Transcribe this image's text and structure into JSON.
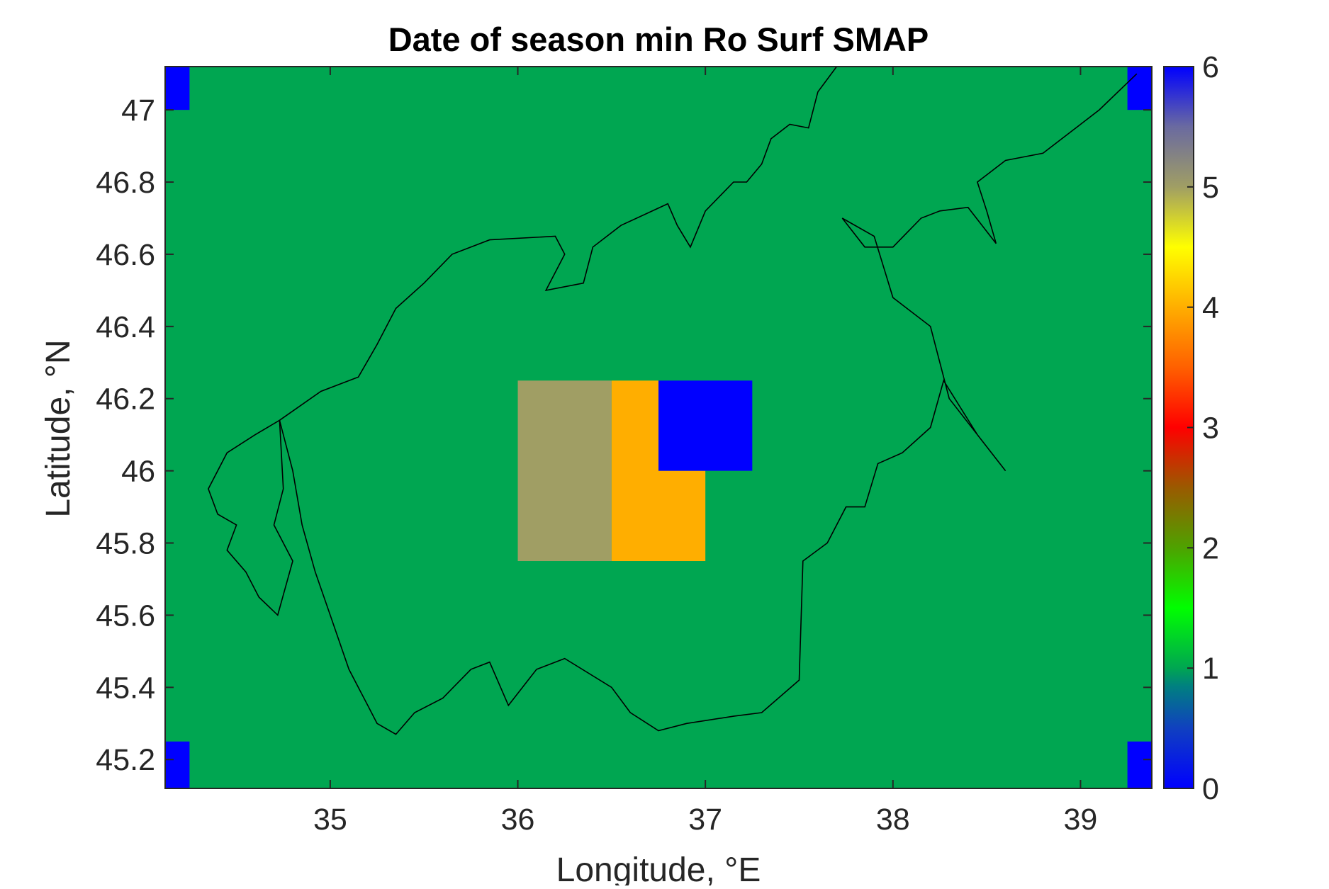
{
  "chart_data": {
    "type": "heatmap",
    "title": "Date of season min Ro Surf SMAP",
    "xlabel": "Longitude, °E",
    "ylabel": "Latitude, °N",
    "xlim": [
      34.12,
      39.38
    ],
    "ylim": [
      45.12,
      47.12
    ],
    "xticks": [
      {
        "value": 35,
        "label": "35"
      },
      {
        "value": 36,
        "label": "36"
      },
      {
        "value": 37,
        "label": "37"
      },
      {
        "value": 38,
        "label": "38"
      },
      {
        "value": 39,
        "label": "39"
      }
    ],
    "yticks": [
      {
        "value": 45.2,
        "label": "45.2"
      },
      {
        "value": 45.4,
        "label": "45.4"
      },
      {
        "value": 45.6,
        "label": "45.6"
      },
      {
        "value": 45.8,
        "label": "45.8"
      },
      {
        "value": 46.0,
        "label": "46"
      },
      {
        "value": 46.2,
        "label": "46.2"
      },
      {
        "value": 46.4,
        "label": "46.4"
      },
      {
        "value": 46.6,
        "label": "46.6"
      },
      {
        "value": 46.8,
        "label": "46.8"
      },
      {
        "value": 47.0,
        "label": "47"
      }
    ],
    "background_value": 1,
    "cells": [
      {
        "lon": [
          36.0,
          36.5
        ],
        "lat": [
          45.75,
          46.25
        ],
        "value": 5
      },
      {
        "lon": [
          36.5,
          36.75
        ],
        "lat": [
          45.75,
          46.25
        ],
        "value": 4
      },
      {
        "lon": [
          36.75,
          37.0
        ],
        "lat": [
          45.75,
          46.0
        ],
        "value": 4
      },
      {
        "lon": [
          36.75,
          37.25
        ],
        "lat": [
          46.0,
          46.25
        ],
        "value": 0
      },
      {
        "lon": [
          34.12,
          34.25
        ],
        "lat": [
          47.0,
          47.12
        ],
        "value": 0
      },
      {
        "lon": [
          39.25,
          39.38
        ],
        "lat": [
          47.0,
          47.12
        ],
        "value": 0
      },
      {
        "lon": [
          34.12,
          34.25
        ],
        "lat": [
          45.12,
          45.25
        ],
        "value": 0
      },
      {
        "lon": [
          39.25,
          39.38
        ],
        "lat": [
          45.12,
          45.25
        ],
        "value": 0
      }
    ],
    "colorbar": {
      "range": [
        0,
        6
      ],
      "ticks": [
        {
          "value": 0,
          "label": "0"
        },
        {
          "value": 1,
          "label": "1"
        },
        {
          "value": 2,
          "label": "2"
        },
        {
          "value": 3,
          "label": "3"
        },
        {
          "value": 4,
          "label": "4"
        },
        {
          "value": 5,
          "label": "5"
        },
        {
          "value": 6,
          "label": "6"
        }
      ],
      "colormap_stops": [
        {
          "value": 0.0,
          "color": "#0000ff"
        },
        {
          "value": 0.5,
          "color": "#1040c0"
        },
        {
          "value": 0.85,
          "color": "#008080"
        },
        {
          "value": 1.0,
          "color": "#00a651"
        },
        {
          "value": 1.5,
          "color": "#00ff00"
        },
        {
          "value": 2.0,
          "color": "#4ea200"
        },
        {
          "value": 2.5,
          "color": "#9a5a00"
        },
        {
          "value": 3.0,
          "color": "#ff0000"
        },
        {
          "value": 3.5,
          "color": "#ff6000"
        },
        {
          "value": 4.0,
          "color": "#ffae00"
        },
        {
          "value": 4.5,
          "color": "#ffff00"
        },
        {
          "value": 5.0,
          "color": "#a09e64"
        },
        {
          "value": 5.5,
          "color": "#6a6aa0"
        },
        {
          "value": 6.0,
          "color": "#0000ff"
        }
      ]
    },
    "colors": {
      "land_background": "#00a651",
      "value_5": "#a09e64",
      "value_4": "#ffae00",
      "value_0": "#0000ff",
      "coastline": "#000000"
    },
    "coastline_outline": [
      [
        34.73,
        46.14
      ],
      [
        35.1,
        46.24
      ],
      [
        35.18,
        46.29
      ],
      [
        35.35,
        46.43
      ],
      [
        35.52,
        46.52
      ],
      [
        35.62,
        46.63
      ],
      [
        35.85,
        46.67
      ],
      [
        36.25,
        46.65
      ],
      [
        36.42,
        46.53
      ],
      [
        36.55,
        46.68
      ],
      [
        36.82,
        46.73
      ],
      [
        37.0,
        46.74
      ],
      [
        37.15,
        46.8
      ],
      [
        37.22,
        46.76
      ],
      [
        37.43,
        46.85
      ],
      [
        37.62,
        46.92
      ],
      [
        37.75,
        47.08
      ],
      [
        37.97,
        47.12
      ]
    ],
    "grid": false,
    "legend": "colorbar-right"
  }
}
